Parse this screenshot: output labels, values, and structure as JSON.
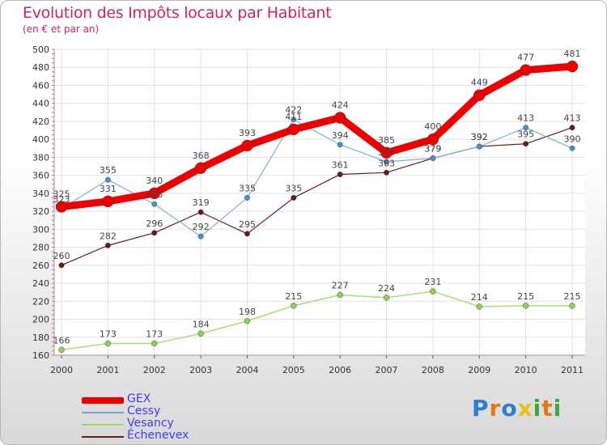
{
  "header": {
    "title": "Evolution des Impôts locaux par Habitant",
    "subtitle": "(en € et par an)"
  },
  "chart_data": {
    "type": "line",
    "title": "Evolution des Impôts locaux par Habitant",
    "subtitle": "(en € et par an)",
    "xlabel": "",
    "ylabel": "",
    "categories": [
      "2000",
      "2001",
      "2002",
      "2003",
      "2004",
      "2005",
      "2006",
      "2007",
      "2008",
      "2009",
      "2010",
      "2011"
    ],
    "ylim": [
      160,
      500
    ],
    "yticks": [
      160,
      180,
      200,
      220,
      240,
      260,
      280,
      300,
      320,
      340,
      360,
      380,
      400,
      420,
      440,
      460,
      480,
      500
    ],
    "grid": true,
    "legend_position": "bottom-left",
    "series": [
      {
        "name": "Échenevex",
        "color": "#6b1a1a",
        "values": [
          260,
          282,
          296,
          319,
          295,
          335,
          361,
          363,
          379,
          392,
          395,
          413
        ],
        "labels": [
          "260",
          "282",
          "296",
          "319",
          "295",
          "335",
          "361",
          "363",
          "379",
          "392",
          "395",
          "413"
        ]
      },
      {
        "name": "Vesancy",
        "color": "#9ed66a",
        "values": [
          166,
          173,
          173,
          184,
          198,
          215,
          227,
          224,
          231,
          214,
          215,
          215
        ],
        "labels": [
          "166",
          "173",
          "173",
          "184",
          "198",
          "215",
          "227",
          "224",
          "231",
          "214",
          "215",
          "215"
        ]
      },
      {
        "name": "Cessy",
        "color": "#6fa6d6",
        "values": [
          323,
          355,
          328,
          292,
          335,
          422,
          394,
          375,
          379,
          392,
          413,
          390
        ],
        "labels": [
          "323",
          "355",
          "328",
          "292",
          "335",
          "422",
          "394",
          "375",
          "379",
          "392",
          "413",
          "390"
        ]
      },
      {
        "name": "GEX",
        "color": "#ee0000",
        "values": [
          325,
          331,
          340,
          368,
          393,
          411,
          424,
          385,
          400,
          449,
          477,
          481
        ],
        "labels": [
          "325",
          "331",
          "340",
          "368",
          "393",
          "411",
          "424",
          "385",
          "400",
          "449",
          "477",
          "481"
        ]
      }
    ],
    "legend": [
      "GEX",
      "Cessy",
      "Vesancy",
      "Échenevex"
    ]
  },
  "legend": {
    "items": [
      {
        "label": "GEX",
        "color": "#ee0000"
      },
      {
        "label": "Cessy",
        "color": "#6fa6d6"
      },
      {
        "label": "Vesancy",
        "color": "#9ed66a"
      },
      {
        "label": "Échenevex",
        "color": "#6b1a1a"
      }
    ]
  },
  "logo": {
    "letters": [
      "P",
      "r",
      "o",
      "x",
      "i",
      "t",
      "i"
    ],
    "colors": [
      "#2f7fd0",
      "#e8751a",
      "#2f7fd0",
      "#e8c11a",
      "#3aa83a",
      "#e8751a",
      "#3aa83a"
    ]
  }
}
